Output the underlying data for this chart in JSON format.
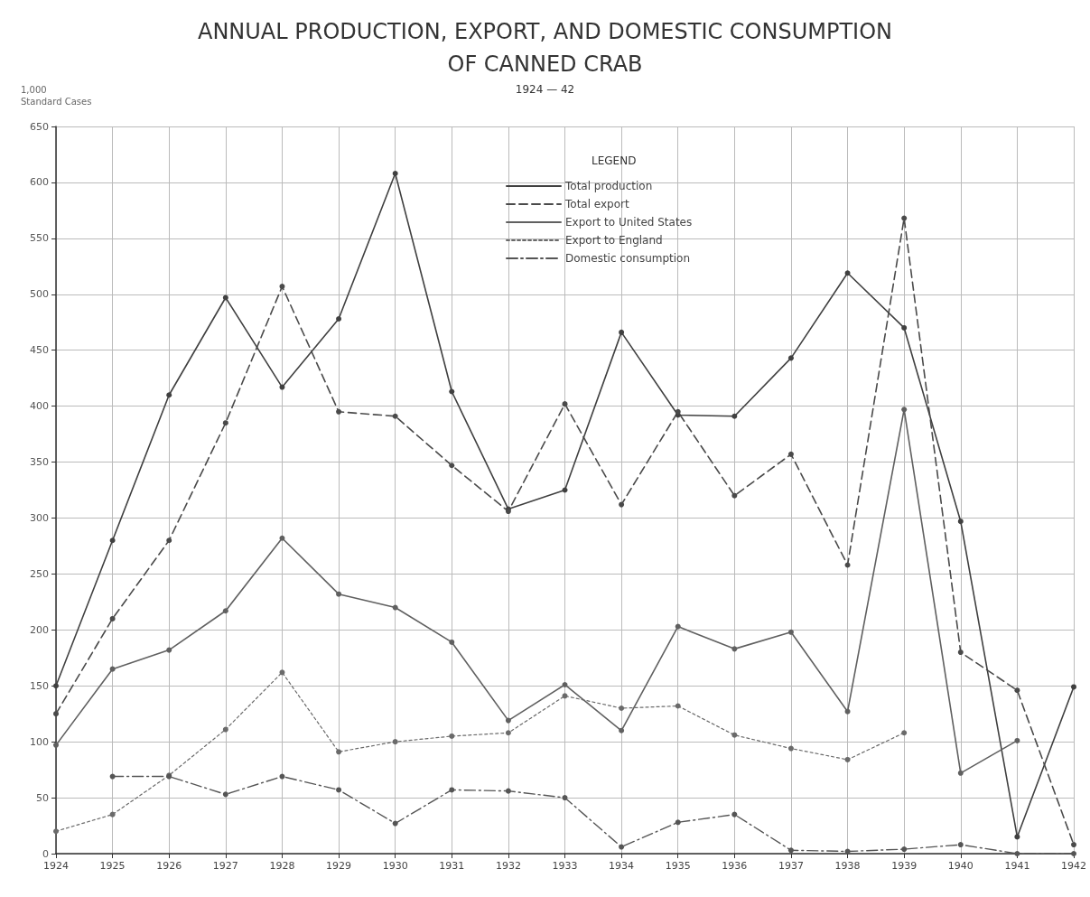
{
  "chart_data": {
    "type": "line",
    "title": "ANNUAL PRODUCTION, EXPORT, AND DOMESTIC CONSUMPTION\nOF CANNED CRAB",
    "subtitle": "1924 — 42",
    "ylabel": "1,000\nStandard Cases",
    "legend_title": "LEGEND",
    "categories": [
      "1924",
      "1925",
      "1926",
      "1927",
      "1928",
      "1929",
      "1930",
      "1931",
      "1932",
      "1933",
      "1934",
      "1935",
      "1936",
      "1937",
      "1938",
      "1939",
      "1940",
      "1941",
      "1942"
    ],
    "series": [
      {
        "name": "Total production",
        "color": "#404040",
        "line_style": "solid",
        "values": [
          150,
          280,
          410,
          497,
          417,
          478,
          608,
          413,
          308,
          325,
          466,
          392,
          391,
          443,
          519,
          470,
          297,
          15,
          149
        ]
      },
      {
        "name": "Total export",
        "color": "#4a4a4a",
        "line_style": "dashed",
        "values": [
          125,
          210,
          280,
          385,
          507,
          395,
          391,
          347,
          306,
          402,
          312,
          395,
          320,
          357,
          258,
          568,
          180,
          146,
          8
        ]
      },
      {
        "name": "Export to United States",
        "color": "#606060",
        "line_style": "solid",
        "values": [
          97,
          165,
          182,
          217,
          282,
          232,
          220,
          189,
          119,
          151,
          110,
          203,
          183,
          198,
          127,
          397,
          72,
          101,
          null
        ]
      },
      {
        "name": "Export to England",
        "color": "#6a6a6a",
        "line_style": "dotted",
        "values": [
          20,
          35,
          70,
          111,
          162,
          91,
          100,
          105,
          108,
          141,
          130,
          132,
          106,
          94,
          84,
          108,
          null,
          null,
          null
        ]
      },
      {
        "name": "Domestic consumption",
        "color": "#555555",
        "line_style": "dashdot",
        "values": [
          null,
          69,
          69,
          53,
          69,
          57,
          27,
          57,
          56,
          50,
          6,
          28,
          35,
          3,
          2,
          4,
          8,
          0,
          0
        ]
      }
    ],
    "ylim": [
      0,
      650
    ],
    "yticks": [
      0,
      50,
      100,
      150,
      200,
      250,
      300,
      350,
      400,
      450,
      500,
      550,
      600,
      650
    ],
    "grid": true,
    "legend": "top",
    "marker": "circle"
  }
}
